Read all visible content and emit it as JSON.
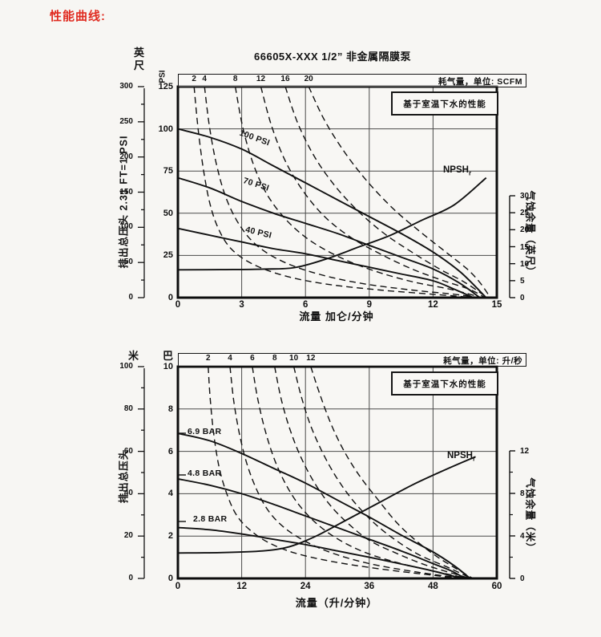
{
  "page": {
    "heading": "性能曲线:"
  },
  "colors": {
    "heading": "#e02b20",
    "ink": "#111111",
    "grid": "#4a4a4a",
    "paper": "#f8f7f4"
  },
  "chart_data": [
    {
      "type": "line",
      "title": "66605X-XXX 1/2” 非金属隔膜泵",
      "note": "基于室温下水的性能",
      "air_scale": {
        "label": "耗气量，单位: SCFM",
        "ticks": [
          "2",
          "4",
          "8",
          "12",
          "16",
          "20"
        ],
        "tick_x": [
          0.76,
          1.25,
          2.7,
          3.9,
          5.05,
          6.15
        ]
      },
      "ylabel": "排出总压头 2.31 FT=1 PSI",
      "npsh_label": {
        "main": "NPSH",
        "sub": "r"
      },
      "axes": {
        "left_outer": {
          "title": "英尺",
          "max": 300,
          "ticks": [
            300,
            250,
            200,
            150,
            100,
            50,
            0
          ],
          "minor_step": 25
        },
        "left_inner": {
          "title": "PSI",
          "max": 125,
          "ticks": [
            125,
            100,
            75,
            50,
            25,
            0
          ]
        },
        "bottom": {
          "label": "流量 加仑/分钟",
          "max": 15,
          "ticks": [
            0,
            3,
            6,
            9,
            12,
            15
          ]
        },
        "right": {
          "label": "气蚀余量（英尺）",
          "max": 30,
          "ticks": [
            0,
            5,
            10,
            15,
            20,
            25,
            30
          ]
        }
      },
      "grid": {
        "x": [
          3,
          6,
          9,
          12
        ],
        "y": [
          25,
          50,
          75,
          100
        ]
      },
      "solid_curves": [
        {
          "label": "100 PSI",
          "points": [
            [
              0,
              100
            ],
            [
              1.5,
              95
            ],
            [
              3,
              88
            ],
            [
              4.5,
              78
            ],
            [
              6,
              68
            ],
            [
              7.5,
              58
            ],
            [
              9,
              48
            ],
            [
              10.5,
              38
            ],
            [
              12,
              27
            ],
            [
              13.3,
              15
            ],
            [
              14.5,
              0
            ]
          ]
        },
        {
          "label": "70 PSI",
          "points": [
            [
              0,
              71
            ],
            [
              1.5,
              65
            ],
            [
              3,
              57
            ],
            [
              4.5,
              50
            ],
            [
              6,
              44
            ],
            [
              7.5,
              38
            ],
            [
              9,
              31
            ],
            [
              10.5,
              24
            ],
            [
              12,
              17
            ],
            [
              13.2,
              9
            ],
            [
              14.2,
              0
            ]
          ]
        },
        {
          "label": "40 PSI",
          "points": [
            [
              0,
              41
            ],
            [
              1.5,
              37
            ],
            [
              3,
              33
            ],
            [
              4.5,
              29
            ],
            [
              6,
              26
            ],
            [
              7.5,
              22
            ],
            [
              9,
              18
            ],
            [
              10.5,
              14
            ],
            [
              12,
              10
            ],
            [
              13,
              5
            ],
            [
              13.9,
              0
            ]
          ]
        }
      ],
      "npsh_curve": {
        "points": [
          [
            0,
            16.5
          ],
          [
            2,
            16.6
          ],
          [
            4,
            16.9
          ],
          [
            5.5,
            17.8
          ],
          [
            7,
            23
          ],
          [
            8.5,
            30
          ],
          [
            10,
            37
          ],
          [
            11.5,
            46
          ],
          [
            13,
            55
          ],
          [
            14.5,
            71
          ]
        ]
      },
      "dashed_curves": [
        {
          "name": "2",
          "points": [
            [
              0.76,
              125
            ],
            [
              0.95,
              100
            ],
            [
              1.2,
              76
            ],
            [
              1.5,
              56
            ],
            [
              1.9,
              41
            ],
            [
              2.5,
              29
            ],
            [
              3.5,
              20
            ],
            [
              5,
              13
            ],
            [
              7,
              8
            ],
            [
              9.5,
              4.5
            ],
            [
              12,
              2
            ],
            [
              14,
              0
            ]
          ]
        },
        {
          "name": "4",
          "points": [
            [
              1.25,
              125
            ],
            [
              1.5,
              100
            ],
            [
              1.85,
              77
            ],
            [
              2.3,
              58
            ],
            [
              2.95,
              42
            ],
            [
              3.8,
              30
            ],
            [
              5,
              21
            ],
            [
              6.6,
              14
            ],
            [
              8.6,
              8.5
            ],
            [
              11,
              4.5
            ],
            [
              13,
              2
            ],
            [
              14.2,
              0
            ]
          ]
        },
        {
          "name": "8",
          "points": [
            [
              2.7,
              125
            ],
            [
              3.05,
              101
            ],
            [
              3.55,
              79
            ],
            [
              4.2,
              61
            ],
            [
              5.1,
              46
            ],
            [
              6.2,
              34
            ],
            [
              7.6,
              24
            ],
            [
              9.2,
              16
            ],
            [
              11,
              9.5
            ],
            [
              12.8,
              5
            ],
            [
              14.3,
              0
            ]
          ]
        },
        {
          "name": "12",
          "points": [
            [
              3.9,
              125
            ],
            [
              4.4,
              102
            ],
            [
              5.05,
              81
            ],
            [
              5.9,
              63
            ],
            [
              6.9,
              48
            ],
            [
              8.1,
              36
            ],
            [
              9.5,
              26
            ],
            [
              11,
              17
            ],
            [
              12.5,
              10
            ],
            [
              13.7,
              5
            ],
            [
              14.45,
              0
            ]
          ]
        },
        {
          "name": "16",
          "points": [
            [
              5.05,
              125
            ],
            [
              5.65,
              103
            ],
            [
              6.45,
              83
            ],
            [
              7.4,
              66
            ],
            [
              8.5,
              51
            ],
            [
              9.7,
              38
            ],
            [
              11,
              27
            ],
            [
              12.3,
              17
            ],
            [
              13.5,
              9
            ],
            [
              14.55,
              0
            ]
          ]
        },
        {
          "name": "20",
          "points": [
            [
              6.15,
              125
            ],
            [
              6.9,
              105
            ],
            [
              7.85,
              86
            ],
            [
              8.9,
              69
            ],
            [
              10.1,
              53
            ],
            [
              11.3,
              40
            ],
            [
              12.5,
              28
            ],
            [
              13.6,
              17
            ],
            [
              14.2,
              9
            ],
            [
              14.7,
              0
            ]
          ]
        }
      ]
    },
    {
      "type": "line",
      "title": "",
      "note": "基于室温下水的性能",
      "air_scale": {
        "label": "耗气量，单位: 升/秒",
        "ticks": [
          "2",
          "4",
          "6",
          "8",
          "10",
          "12"
        ],
        "tick_x": [
          5.7,
          9.8,
          14,
          18.2,
          21.8,
          25
        ]
      },
      "ylabel": "排出总压头",
      "npsh_label": {
        "main": "NPSH",
        "sub": "r"
      },
      "axes": {
        "left_outer": {
          "title": "米",
          "max": 100,
          "ticks": [
            100,
            80,
            60,
            40,
            20,
            0
          ],
          "minor_step": 10
        },
        "left_inner": {
          "title": "巴",
          "max": 10,
          "ticks": [
            10,
            8,
            6,
            4,
            2,
            0
          ]
        },
        "bottom": {
          "label": "流量（升/分钟）",
          "max": 60,
          "ticks": [
            0,
            12,
            24,
            36,
            48,
            60
          ]
        },
        "right": {
          "label": "气蚀余量（米）",
          "max": 12,
          "ticks": [
            0,
            4,
            8,
            12
          ]
        }
      },
      "grid": {
        "x": [
          12,
          24,
          36,
          48
        ],
        "y": [
          2,
          4,
          6,
          8
        ]
      },
      "solid_curves": [
        {
          "label": "6.9 BAR",
          "points": [
            [
              0,
              6.85
            ],
            [
              6,
              6.5
            ],
            [
              12,
              5.9
            ],
            [
              18,
              5.2
            ],
            [
              24,
              4.5
            ],
            [
              30,
              3.7
            ],
            [
              36,
              2.9
            ],
            [
              42,
              2.05
            ],
            [
              48,
              1.25
            ],
            [
              52,
              0.6
            ],
            [
              55,
              0
            ]
          ]
        },
        {
          "label": "4.8 BAR",
          "points": [
            [
              0,
              4.7
            ],
            [
              6,
              4.4
            ],
            [
              12,
              4.0
            ],
            [
              18,
              3.5
            ],
            [
              24,
              2.95
            ],
            [
              30,
              2.4
            ],
            [
              36,
              1.85
            ],
            [
              42,
              1.3
            ],
            [
              48,
              0.7
            ],
            [
              51.5,
              0.35
            ],
            [
              54,
              0
            ]
          ]
        },
        {
          "label": "2.8 BAR",
          "points": [
            [
              0,
              2.4
            ],
            [
              6,
              2.3
            ],
            [
              12,
              2.1
            ],
            [
              18,
              1.85
            ],
            [
              24,
              1.6
            ],
            [
              30,
              1.3
            ],
            [
              36,
              1.0
            ],
            [
              42,
              0.68
            ],
            [
              48,
              0.35
            ],
            [
              53.5,
              0
            ]
          ]
        }
      ],
      "npsh_curve": {
        "points": [
          [
            0,
            1.2
          ],
          [
            8,
            1.22
          ],
          [
            16,
            1.3
          ],
          [
            21,
            1.5
          ],
          [
            26,
            2.0
          ],
          [
            32,
            2.8
          ],
          [
            38,
            3.6
          ],
          [
            44,
            4.4
          ],
          [
            50,
            5.1
          ],
          [
            56,
            5.75
          ]
        ]
      },
      "dashed_curves": [
        {
          "name": "2",
          "points": [
            [
              5.7,
              10
            ],
            [
              6.1,
              8.4
            ],
            [
              6.8,
              6.7
            ],
            [
              7.8,
              5.2
            ],
            [
              9.2,
              4.0
            ],
            [
              11,
              3.0
            ],
            [
              13.5,
              2.3
            ],
            [
              17,
              1.7
            ],
            [
              22,
              1.2
            ],
            [
              29,
              0.8
            ],
            [
              38,
              0.45
            ],
            [
              48,
              0.15
            ],
            [
              53,
              0
            ]
          ]
        },
        {
          "name": "4",
          "points": [
            [
              9.8,
              10
            ],
            [
              10.5,
              8.4
            ],
            [
              11.6,
              6.8
            ],
            [
              13,
              5.4
            ],
            [
              14.8,
              4.2
            ],
            [
              17,
              3.2
            ],
            [
              20,
              2.4
            ],
            [
              24,
              1.75
            ],
            [
              29,
              1.2
            ],
            [
              36,
              0.7
            ],
            [
              45,
              0.3
            ],
            [
              54,
              0
            ]
          ]
        },
        {
          "name": "6",
          "points": [
            [
              14,
              10
            ],
            [
              15,
              8.5
            ],
            [
              16.4,
              7.0
            ],
            [
              18.2,
              5.6
            ],
            [
              20.4,
              4.4
            ],
            [
              23,
              3.4
            ],
            [
              26.5,
              2.5
            ],
            [
              30.5,
              1.8
            ],
            [
              35.5,
              1.2
            ],
            [
              42,
              0.7
            ],
            [
              49,
              0.3
            ],
            [
              54.5,
              0
            ]
          ]
        },
        {
          "name": "8",
          "points": [
            [
              18.2,
              10
            ],
            [
              19.4,
              8.5
            ],
            [
              21,
              7.1
            ],
            [
              23,
              5.8
            ],
            [
              25.5,
              4.6
            ],
            [
              28.5,
              3.5
            ],
            [
              32,
              2.6
            ],
            [
              36,
              1.8
            ],
            [
              41,
              1.2
            ],
            [
              47,
              0.6
            ],
            [
              55,
              0
            ]
          ]
        },
        {
          "name": "10",
          "points": [
            [
              21.8,
              10
            ],
            [
              23.2,
              8.6
            ],
            [
              25,
              7.2
            ],
            [
              27.3,
              5.9
            ],
            [
              30,
              4.7
            ],
            [
              33.2,
              3.6
            ],
            [
              37,
              2.6
            ],
            [
              41,
              1.8
            ],
            [
              45.5,
              1.1
            ],
            [
              51,
              0.5
            ],
            [
              55.2,
              0
            ]
          ]
        },
        {
          "name": "12",
          "points": [
            [
              25,
              10
            ],
            [
              26.7,
              8.7
            ],
            [
              28.8,
              7.3
            ],
            [
              31.3,
              6.0
            ],
            [
              34.3,
              4.8
            ],
            [
              37.7,
              3.7
            ],
            [
              41.3,
              2.6
            ],
            [
              45.2,
              1.7
            ],
            [
              49.5,
              0.9
            ],
            [
              55.5,
              0
            ]
          ]
        }
      ]
    }
  ]
}
